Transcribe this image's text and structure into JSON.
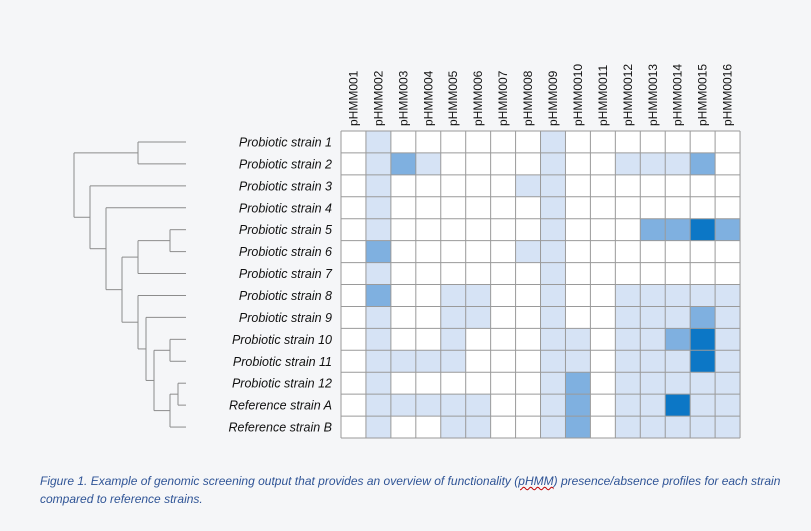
{
  "caption": {
    "before": "Figure 1. Example of genomic screening output that provides an overview of functionality (",
    "term": "pHMM",
    "after": ") presence/absence profiles for each strain compared to reference strains."
  },
  "chart_data": {
    "type": "heatmap",
    "title": "",
    "columns": [
      "pHMM001",
      "pHMM002",
      "pHMM003",
      "pHMM004",
      "pHMM005",
      "pHMM006",
      "pHMM007",
      "pHMM008",
      "pHMM009",
      "pHMM0010",
      "pHMM0011",
      "pHMM0012",
      "pHMM0013",
      "pHMM0014",
      "pHMM0015",
      "pHMM0016"
    ],
    "rows": [
      "Probiotic strain 1",
      "Probiotic strain 2",
      "Probiotic strain 3",
      "Probiotic strain 4",
      "Probiotic strain 5",
      "Probiotic strain 6",
      "Probiotic strain 7",
      "Probiotic strain 8",
      "Probiotic strain 9",
      "Probiotic strain 10",
      "Probiotic strain 11",
      "Probiotic strain 12",
      "Reference strain A",
      "Reference strain  B"
    ],
    "scale": [
      0,
      1,
      2,
      3
    ],
    "colors": [
      "#ffffff",
      "#d6e3f5",
      "#7fb0e0",
      "#0c77c6"
    ],
    "grid_color": "#9a9a9a",
    "values": [
      [
        0,
        1,
        0,
        0,
        0,
        0,
        0,
        0,
        1,
        0,
        0,
        0,
        0,
        0,
        0,
        0
      ],
      [
        0,
        1,
        2,
        1,
        0,
        0,
        0,
        0,
        1,
        0,
        0,
        1,
        1,
        1,
        2,
        0
      ],
      [
        0,
        1,
        0,
        0,
        0,
        0,
        0,
        1,
        1,
        0,
        0,
        0,
        0,
        0,
        0,
        0
      ],
      [
        0,
        1,
        0,
        0,
        0,
        0,
        0,
        0,
        1,
        0,
        0,
        0,
        0,
        0,
        0,
        0
      ],
      [
        0,
        1,
        0,
        0,
        0,
        0,
        0,
        0,
        1,
        0,
        0,
        0,
        2,
        2,
        3,
        2
      ],
      [
        0,
        2,
        0,
        0,
        0,
        0,
        0,
        1,
        1,
        0,
        0,
        0,
        0,
        0,
        0,
        0
      ],
      [
        0,
        1,
        0,
        0,
        0,
        0,
        0,
        0,
        1,
        0,
        0,
        0,
        0,
        0,
        0,
        0
      ],
      [
        0,
        2,
        0,
        0,
        1,
        1,
        0,
        0,
        1,
        0,
        0,
        1,
        1,
        1,
        1,
        1
      ],
      [
        0,
        1,
        0,
        0,
        1,
        1,
        0,
        0,
        1,
        0,
        0,
        1,
        1,
        1,
        2,
        1
      ],
      [
        0,
        1,
        0,
        0,
        1,
        0,
        0,
        0,
        1,
        1,
        0,
        1,
        1,
        2,
        3,
        1
      ],
      [
        0,
        1,
        1,
        1,
        1,
        0,
        0,
        0,
        1,
        1,
        0,
        1,
        1,
        1,
        3,
        1
      ],
      [
        0,
        1,
        0,
        0,
        0,
        0,
        0,
        0,
        1,
        2,
        0,
        1,
        1,
        1,
        1,
        1
      ],
      [
        0,
        1,
        1,
        1,
        1,
        1,
        0,
        0,
        1,
        2,
        0,
        1,
        1,
        3,
        1,
        1
      ],
      [
        0,
        1,
        0,
        0,
        1,
        1,
        0,
        0,
        1,
        2,
        0,
        1,
        1,
        1,
        1,
        1
      ]
    ],
    "dendrogram": {
      "type": "tree",
      "merges": [
        {
          "id": "n1",
          "children": [
            "Probiotic strain 5",
            "Probiotic strain 6"
          ],
          "height": 1
        },
        {
          "id": "n2",
          "children": [
            "Probiotic strain 10",
            "Probiotic strain 11"
          ],
          "height": 1
        },
        {
          "id": "n3",
          "children": [
            "Probiotic strain 12",
            "Reference strain A"
          ],
          "height": 0.5
        },
        {
          "id": "n4",
          "children": [
            "n3",
            "Reference strain  B"
          ],
          "height": 1
        },
        {
          "id": "n5",
          "children": [
            "n2",
            "n4"
          ],
          "height": 2
        },
        {
          "id": "n6",
          "children": [
            "Probiotic strain 9",
            "n5"
          ],
          "height": 2.5
        },
        {
          "id": "n7",
          "children": [
            "Probiotic strain 8",
            "n6"
          ],
          "height": 3
        },
        {
          "id": "n8",
          "children": [
            "n1",
            "Probiotic strain 7"
          ],
          "height": 3
        },
        {
          "id": "n9",
          "children": [
            "n8",
            "n7"
          ],
          "height": 4
        },
        {
          "id": "n10",
          "children": [
            "Probiotic strain 4",
            "n9"
          ],
          "height": 5
        },
        {
          "id": "n11",
          "children": [
            "Probiotic strain 3",
            "n10"
          ],
          "height": 6
        },
        {
          "id": "n12",
          "children": [
            "Probiotic strain 1",
            "Probiotic strain 2"
          ],
          "height": 3
        },
        {
          "id": "root",
          "children": [
            "n12",
            "n11"
          ],
          "height": 7
        }
      ]
    }
  }
}
